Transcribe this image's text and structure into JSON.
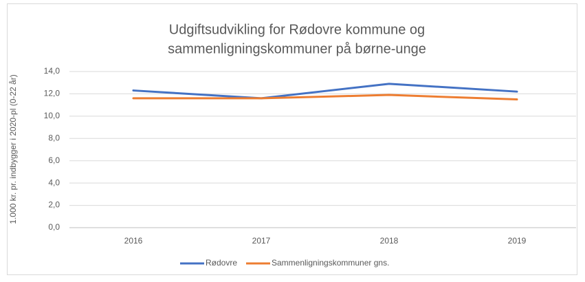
{
  "chart_data": {
    "type": "line",
    "title": [
      "Udgiftsudvikling for Rødovre kommune og",
      "sammenligningskommuner på børne-unge"
    ],
    "y_label": "1.000 kr. pr. indbygger i 2020-pl (0-22 år)",
    "categories": [
      "2016",
      "2017",
      "2018",
      "2019"
    ],
    "series": [
      {
        "name": "Rødovre",
        "color": "#4472c4",
        "values": [
          12.3,
          11.6,
          12.9,
          12.2
        ]
      },
      {
        "name": "Sammenligningskommuner gns.",
        "color": "#ed7d31",
        "values": [
          11.6,
          11.6,
          11.9,
          11.5
        ]
      }
    ],
    "ylim": [
      0,
      14
    ],
    "yticks": [
      {
        "value": 0,
        "label": "0,0"
      },
      {
        "value": 2,
        "label": "2,0"
      },
      {
        "value": 4,
        "label": "4,0"
      },
      {
        "value": 6,
        "label": "6,0"
      },
      {
        "value": 8,
        "label": "8,0"
      },
      {
        "value": 10,
        "label": "10,0"
      },
      {
        "value": 12,
        "label": "12,0"
      },
      {
        "value": 14,
        "label": "14,0"
      }
    ],
    "grid": true,
    "legend": "bottom"
  }
}
